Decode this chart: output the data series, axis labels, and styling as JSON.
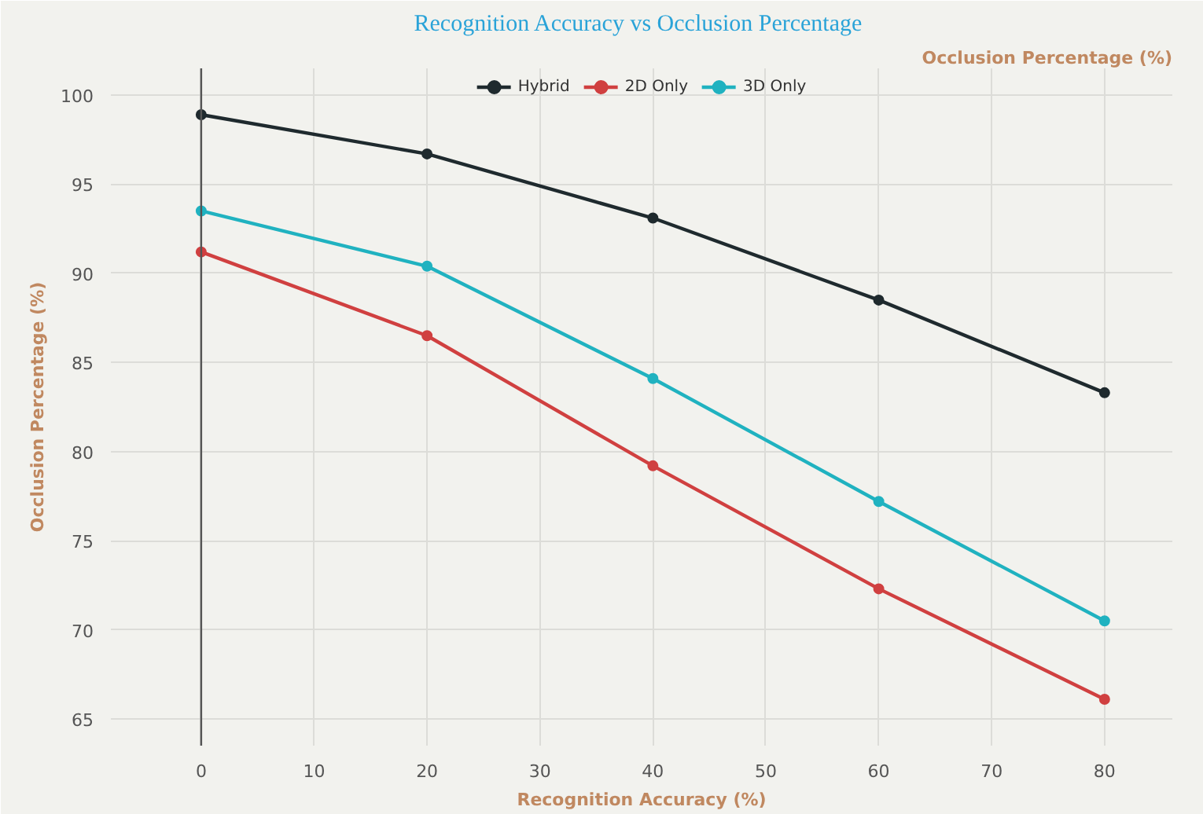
{
  "chart_data": {
    "type": "line",
    "title": "Recognition Accuracy  vs Occlusion Percentage",
    "xlabel": "Recognition Accuracy (%)",
    "ylabel": "Occlusion Percentage (%)",
    "annotations": [
      "Occlusion Percentage (%)"
    ],
    "x": [
      0,
      20,
      40,
      60,
      80
    ],
    "series": [
      {
        "name": "Hybrid",
        "color": "#1f2a2e",
        "values": [
          98.9,
          96.7,
          93.1,
          88.5,
          83.3
        ]
      },
      {
        "name": "2D Only",
        "color": "#d04040",
        "values": [
          91.2,
          86.5,
          79.2,
          72.3,
          66.1
        ]
      },
      {
        "name": "3D Only",
        "color": "#20b2c0",
        "values": [
          93.5,
          90.4,
          84.1,
          77.2,
          70.5
        ]
      }
    ],
    "xlim": [
      -8,
      86
    ],
    "ylim": [
      63.5,
      101.5
    ],
    "xticks": [
      0,
      10,
      20,
      30,
      40,
      50,
      60,
      70,
      80
    ],
    "yticks": [
      65,
      70,
      75,
      80,
      85,
      90,
      95,
      100
    ],
    "ref_lines": [
      {
        "axis": "x",
        "value": 0,
        "color": "#555555"
      }
    ],
    "grid": true,
    "legend": "top",
    "marker": "circle",
    "line_style": "solid"
  }
}
